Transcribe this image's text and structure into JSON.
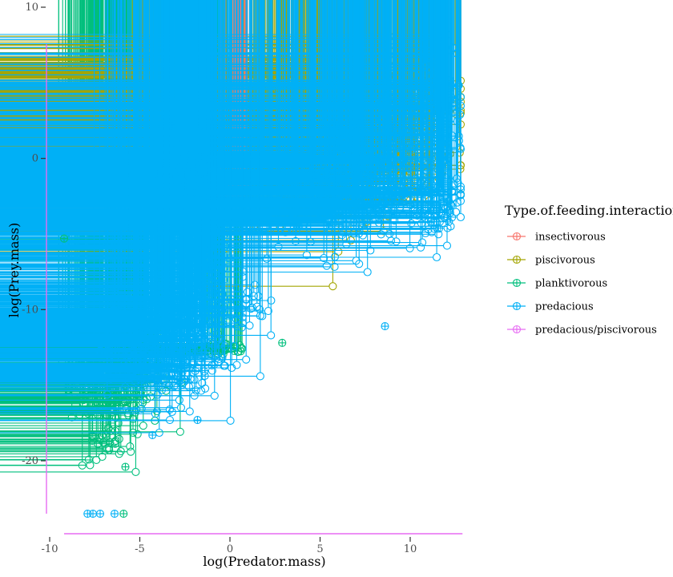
{
  "chart_data": {
    "type": "scatter",
    "title": "",
    "xlabel": "log(Predator.mass)",
    "ylabel": "log(Prey.mass)",
    "xlim": [
      -10,
      13
    ],
    "ylim": [
      -25,
      10
    ],
    "x_ticks": [
      -10,
      -5,
      0,
      5,
      10
    ],
    "x_tick_labels": [
      "-10",
      "-5",
      "0",
      "5",
      "10"
    ],
    "y_ticks": [
      -20,
      -10,
      0,
      10
    ],
    "y_tick_labels": [
      "-20",
      "-10",
      "0",
      "10"
    ],
    "grid": false,
    "marker": "circle-plus",
    "legend": {
      "title": "Type.of.feeding.interaction",
      "position": "right"
    },
    "rug": {
      "color": "#E76BF3",
      "x_range": [
        -9.2,
        12.9
      ],
      "y_range": [
        -23.5,
        8.3
      ]
    },
    "series": [
      {
        "name": "insectivorous",
        "color": "#F8766D",
        "clusters": [
          {
            "cx": 0.5,
            "cy": -2.6,
            "sx": 0.4,
            "sy": 0.5,
            "n": 40
          }
        ]
      },
      {
        "name": "piscivorous",
        "color": "#A3A500",
        "clusters": [
          {
            "cx": 7.2,
            "cy": 2.0,
            "sx": 2.6,
            "sy": 2.6,
            "n": 650
          },
          {
            "cx": 3.6,
            "cy": -1.3,
            "sx": 1.6,
            "sy": 1.2,
            "n": 160
          },
          {
            "cx": -3.3,
            "cy": -3.4,
            "sx": 1.4,
            "sy": 1.0,
            "n": 70
          }
        ]
      },
      {
        "name": "planktivorous",
        "color": "#00BF7D",
        "clusters": [
          {
            "cx": -6.3,
            "cy": -14.3,
            "sx": 1.3,
            "sy": 1.9,
            "n": 260
          },
          {
            "cx": -6.5,
            "cy": -3.7,
            "sx": 1.5,
            "sy": 0.9,
            "n": 50
          },
          {
            "cx": -6.8,
            "cy": -19.2,
            "sx": 0.7,
            "sy": 0.6,
            "n": 25
          },
          {
            "cx": -0.3,
            "cy": -12.6,
            "sx": 0.8,
            "sy": 0.3,
            "n": 40
          }
        ]
      },
      {
        "name": "predacious",
        "color": "#00B0F6",
        "clusters": [
          {
            "cx": 6.8,
            "cy": -1.4,
            "sx": 2.8,
            "sy": 2.4,
            "n": 480
          },
          {
            "cx": -1.6,
            "cy": -6.5,
            "sx": 0.6,
            "sy": 3.4,
            "n": 230
          },
          {
            "cx": -3.6,
            "cy": -12.5,
            "sx": 1.6,
            "sy": 1.9,
            "n": 280
          },
          {
            "cx": -2.3,
            "cy": -1.5,
            "sx": 0.9,
            "sy": 1.4,
            "n": 60
          },
          {
            "cx": 0.6,
            "cy": -9.5,
            "sx": 0.7,
            "sy": 1.3,
            "n": 40
          },
          {
            "cx": 11.6,
            "cy": 4.0,
            "sx": 0.7,
            "sy": 2.0,
            "n": 90
          },
          {
            "cx": 11.8,
            "cy": -3.4,
            "sx": 0.6,
            "sy": 0.9,
            "n": 50
          }
        ]
      },
      {
        "name": "predacious/piscivorous",
        "color": "#E76BF3",
        "clusters": []
      }
    ],
    "outliers": [
      {
        "series": "predacious",
        "x": -6.4,
        "y": -23.5
      },
      {
        "series": "predacious",
        "x": -7.2,
        "y": -23.5
      },
      {
        "series": "predacious",
        "x": -7.6,
        "y": -23.5
      },
      {
        "series": "predacious",
        "x": -7.9,
        "y": -23.5
      },
      {
        "series": "planktivorous",
        "x": -5.9,
        "y": -23.5
      },
      {
        "series": "planktivorous",
        "x": -9.2,
        "y": -5.3
      },
      {
        "series": "planktivorous",
        "x": -5.8,
        "y": -20.4
      },
      {
        "series": "predacious",
        "x": -3.2,
        "y": 2.2
      },
      {
        "series": "predacious",
        "x": -1.0,
        "y": 2.6
      },
      {
        "series": "predacious",
        "x": 8.6,
        "y": -11.1
      },
      {
        "series": "planktivorous",
        "x": 2.9,
        "y": -12.2
      },
      {
        "series": "predacious",
        "x": -4.3,
        "y": -18.3
      },
      {
        "series": "predacious",
        "x": -1.8,
        "y": -17.3
      }
    ]
  }
}
